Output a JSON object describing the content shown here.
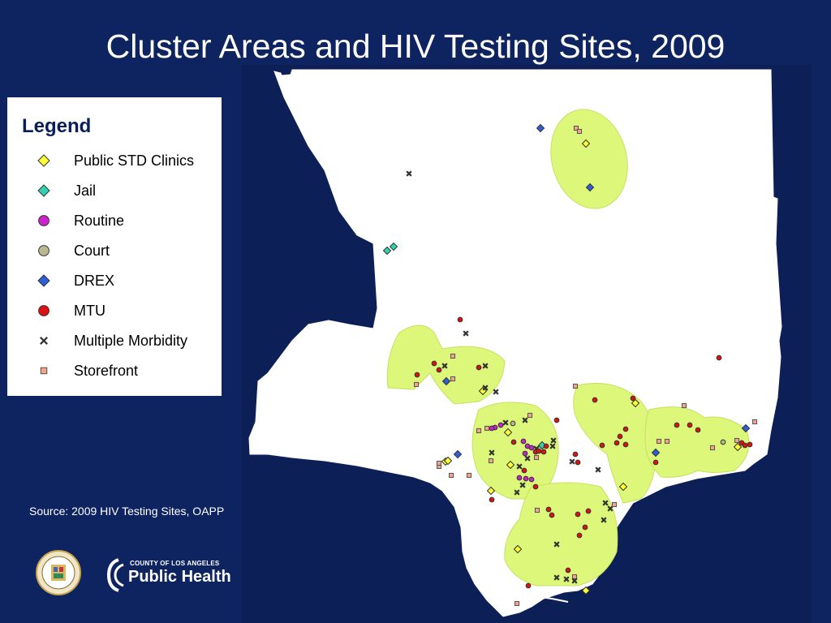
{
  "title": "Cluster Areas and HIV Testing Sites, 2009",
  "legend": {
    "title": "Legend",
    "items": [
      {
        "label": "Public STD Clinics",
        "symbol": "diamond",
        "color": "#ffff33"
      },
      {
        "label": "Jail",
        "symbol": "diamond",
        "color": "#2fd3b0"
      },
      {
        "label": "Routine",
        "symbol": "circle",
        "color": "#cc22cc"
      },
      {
        "label": "Court",
        "symbol": "circle",
        "color": "#b9b98f"
      },
      {
        "label": "DREX",
        "symbol": "diamond",
        "color": "#2f5fd8"
      },
      {
        "label": "MTU",
        "symbol": "circle",
        "color": "#dd1111"
      },
      {
        "label": "Multiple Morbidity",
        "symbol": "x",
        "color": "#333333"
      },
      {
        "label": "Storefront",
        "symbol": "square",
        "color": "#f4a48a"
      }
    ]
  },
  "source": "Source:  2009  HIV Testing Sites, OAPP",
  "logos": {
    "public_health_small": "COUNTY OF LOS ANGELES",
    "public_health_big": "Public Health"
  },
  "colors": {
    "background": "#0e2460",
    "county_fill": "#ffffff",
    "cluster_fill": "#dcf77a",
    "title_text": "#ffffff"
  }
}
